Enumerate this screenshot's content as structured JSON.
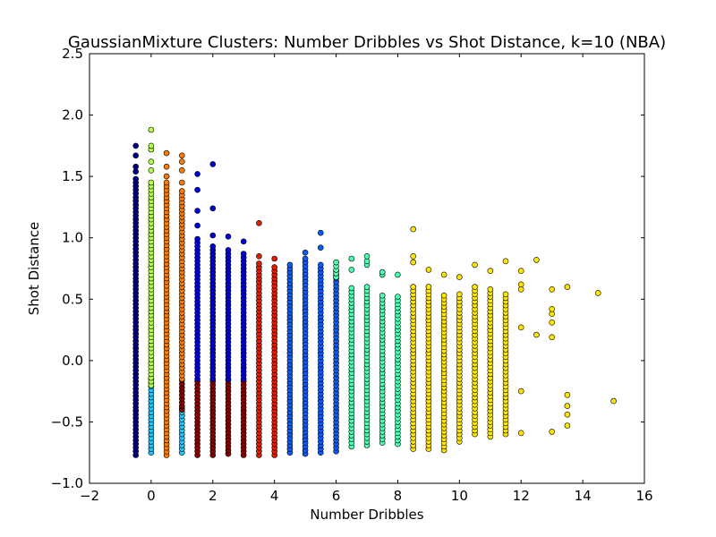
{
  "chart_data": {
    "type": "scatter",
    "title": "GaussianMixture Clusters: Number Dribbles vs Shot Distance, k=10 (NBA)",
    "xlabel": "Number Dribbles",
    "ylabel": "Shot Distance",
    "xlim": [
      -2,
      16
    ],
    "ylim": [
      -1.0,
      2.5
    ],
    "x_ticks": [
      -2,
      0,
      2,
      4,
      6,
      8,
      10,
      12,
      14,
      16
    ],
    "y_ticks": [
      -1.0,
      -0.5,
      0.0,
      0.5,
      1.0,
      1.5,
      2.0,
      2.5
    ],
    "x_tick_labels": [
      "−2",
      "0",
      "2",
      "4",
      "6",
      "8",
      "10",
      "12",
      "14",
      "16"
    ],
    "y_tick_labels": [
      "−1.0",
      "−0.5",
      "0.0",
      "0.5",
      "1.0",
      "1.5",
      "2.0",
      "2.5"
    ],
    "grid": false,
    "legend": "none",
    "clusters": [
      {
        "name": "cluster-navy",
        "color": "#00008f"
      },
      {
        "name": "cluster-green",
        "color": "#b2ff4c"
      },
      {
        "name": "cluster-orange",
        "color": "#ff7a00"
      },
      {
        "name": "cluster-cyan",
        "color": "#1cc8ff"
      },
      {
        "name": "cluster-darkred",
        "color": "#8b0000"
      },
      {
        "name": "cluster-blue",
        "color": "#0000d8"
      },
      {
        "name": "cluster-red",
        "color": "#e81a00"
      },
      {
        "name": "cluster-mediumblue",
        "color": "#0a5cff"
      },
      {
        "name": "cluster-aquamarine",
        "color": "#4cffb0"
      },
      {
        "name": "cluster-yellow",
        "color": "#ffe600"
      }
    ],
    "columns": [
      {
        "x": -0.5,
        "segments": [
          {
            "c": 0,
            "lo": -0.77,
            "hi": 1.48
          }
        ],
        "extra": [
          1.54,
          1.58,
          1.67,
          1.75
        ]
      },
      {
        "x": 0,
        "segments": [
          {
            "c": 3,
            "lo": -0.75,
            "hi": -0.15
          },
          {
            "c": 1,
            "lo": -0.2,
            "hi": 1.45
          }
        ],
        "extra": [
          1.55,
          1.62,
          1.72,
          1.75,
          1.88
        ]
      },
      {
        "x": 0.5,
        "segments": [
          {
            "c": 2,
            "lo": -0.77,
            "hi": 1.45
          }
        ],
        "extra": [
          1.5,
          1.58,
          1.69
        ]
      },
      {
        "x": 1,
        "segments": [
          {
            "c": 3,
            "lo": -0.75,
            "hi": -0.38
          },
          {
            "c": 4,
            "lo": -0.4,
            "hi": -0.15
          },
          {
            "c": 2,
            "lo": -0.15,
            "hi": 1.4
          }
        ],
        "extra": [
          1.45,
          1.55,
          1.62,
          1.67
        ]
      },
      {
        "x": 1.5,
        "segments": [
          {
            "c": 4,
            "lo": -0.77,
            "hi": -0.15
          },
          {
            "c": 5,
            "lo": -0.15,
            "hi": 1.0
          }
        ],
        "extra": [
          1.1,
          1.22,
          1.39,
          1.52
        ]
      },
      {
        "x": 2,
        "segments": [
          {
            "c": 4,
            "lo": -0.77,
            "hi": -0.15
          },
          {
            "c": 5,
            "lo": -0.15,
            "hi": 0.95
          }
        ],
        "extra": [
          1.02,
          1.24,
          1.6
        ]
      },
      {
        "x": 2.5,
        "segments": [
          {
            "c": 4,
            "lo": -0.76,
            "hi": -0.15
          },
          {
            "c": 5,
            "lo": -0.15,
            "hi": 0.92
          }
        ],
        "extra": [
          1.01
        ]
      },
      {
        "x": 3,
        "segments": [
          {
            "c": 4,
            "lo": -0.77,
            "hi": -0.15
          },
          {
            "c": 5,
            "lo": -0.15,
            "hi": 0.88
          }
        ],
        "extra": [
          0.97
        ]
      },
      {
        "x": 3.5,
        "segments": [
          {
            "c": 6,
            "lo": -0.77,
            "hi": 0.8
          }
        ],
        "extra": [
          0.85,
          1.12
        ]
      },
      {
        "x": 4,
        "segments": [
          {
            "c": 6,
            "lo": -0.77,
            "hi": 0.78
          }
        ],
        "extra": [
          0.83
        ]
      },
      {
        "x": 4.5,
        "segments": [
          {
            "c": 7,
            "lo": -0.75,
            "hi": 0.75
          }
        ],
        "extra": [
          0.78
        ]
      },
      {
        "x": 5,
        "segments": [
          {
            "c": 7,
            "lo": -0.76,
            "hi": 0.85
          }
        ],
        "extra": [
          0.88
        ]
      },
      {
        "x": 5.5,
        "segments": [
          {
            "c": 7,
            "lo": -0.75,
            "hi": 0.8
          }
        ],
        "extra": [
          0.92,
          1.04
        ]
      },
      {
        "x": 6,
        "segments": [
          {
            "c": 7,
            "lo": -0.74,
            "hi": 0.75
          },
          {
            "c": 8,
            "lo": 0.68,
            "hi": 0.82
          }
        ],
        "extra": []
      },
      {
        "x": 6.5,
        "segments": [
          {
            "c": 8,
            "lo": -0.7,
            "hi": 0.6
          }
        ],
        "extra": [
          0.74,
          0.83
        ]
      },
      {
        "x": 7,
        "segments": [
          {
            "c": 8,
            "lo": -0.69,
            "hi": 0.62
          }
        ],
        "extra": [
          0.78,
          0.81,
          0.85
        ]
      },
      {
        "x": 7.5,
        "segments": [
          {
            "c": 8,
            "lo": -0.67,
            "hi": 0.55
          }
        ],
        "extra": [
          0.7,
          0.72
        ]
      },
      {
        "x": 8,
        "segments": [
          {
            "c": 8,
            "lo": -0.68,
            "hi": 0.52
          }
        ],
        "extra": [
          0.7
        ]
      },
      {
        "x": 8.5,
        "segments": [
          {
            "c": 9,
            "lo": -0.72,
            "hi": 0.6
          }
        ],
        "extra": [
          0.8,
          0.85,
          1.07
        ]
      },
      {
        "x": 9,
        "segments": [
          {
            "c": 9,
            "lo": -0.72,
            "hi": 0.6
          }
        ],
        "extra": [
          0.74
        ]
      },
      {
        "x": 9.5,
        "segments": [
          {
            "c": 9,
            "lo": -0.73,
            "hi": 0.55
          }
        ],
        "extra": [
          0.7
        ]
      },
      {
        "x": 10,
        "segments": [
          {
            "c": 9,
            "lo": -0.66,
            "hi": 0.55
          }
        ],
        "extra": [
          0.68
        ]
      },
      {
        "x": 10.5,
        "segments": [
          {
            "c": 9,
            "lo": -0.6,
            "hi": 0.6
          }
        ],
        "extra": [
          0.78
        ]
      },
      {
        "x": 11,
        "segments": [
          {
            "c": 9,
            "lo": -0.62,
            "hi": 0.6
          }
        ],
        "extra": [
          0.73
        ]
      },
      {
        "x": 11.5,
        "segments": [
          {
            "c": 9,
            "lo": -0.6,
            "hi": 0.55
          }
        ],
        "extra": [
          0.81
        ]
      },
      {
        "x": 12,
        "points": [
          {
            "c": 9,
            "y": -0.59
          },
          {
            "c": 9,
            "y": -0.25
          },
          {
            "c": 9,
            "y": 0.27
          },
          {
            "c": 9,
            "y": 0.58
          },
          {
            "c": 9,
            "y": 0.62
          },
          {
            "c": 9,
            "y": 0.73
          }
        ]
      },
      {
        "x": 12.5,
        "points": [
          {
            "c": 9,
            "y": 0.21
          },
          {
            "c": 9,
            "y": 0.82
          }
        ]
      },
      {
        "x": 13,
        "points": [
          {
            "c": 9,
            "y": -0.58
          },
          {
            "c": 9,
            "y": 0.19
          },
          {
            "c": 9,
            "y": 0.31
          },
          {
            "c": 9,
            "y": 0.38
          },
          {
            "c": 9,
            "y": 0.42
          },
          {
            "c": 9,
            "y": 0.58
          }
        ]
      },
      {
        "x": 13.5,
        "points": [
          {
            "c": 9,
            "y": -0.53
          },
          {
            "c": 9,
            "y": -0.44
          },
          {
            "c": 9,
            "y": -0.37
          },
          {
            "c": 9,
            "y": -0.28
          },
          {
            "c": 9,
            "y": 0.6
          }
        ]
      },
      {
        "x": 14.5,
        "points": [
          {
            "c": 9,
            "y": 0.55
          }
        ]
      },
      {
        "x": 15,
        "points": [
          {
            "c": 9,
            "y": -0.33
          }
        ]
      }
    ]
  }
}
